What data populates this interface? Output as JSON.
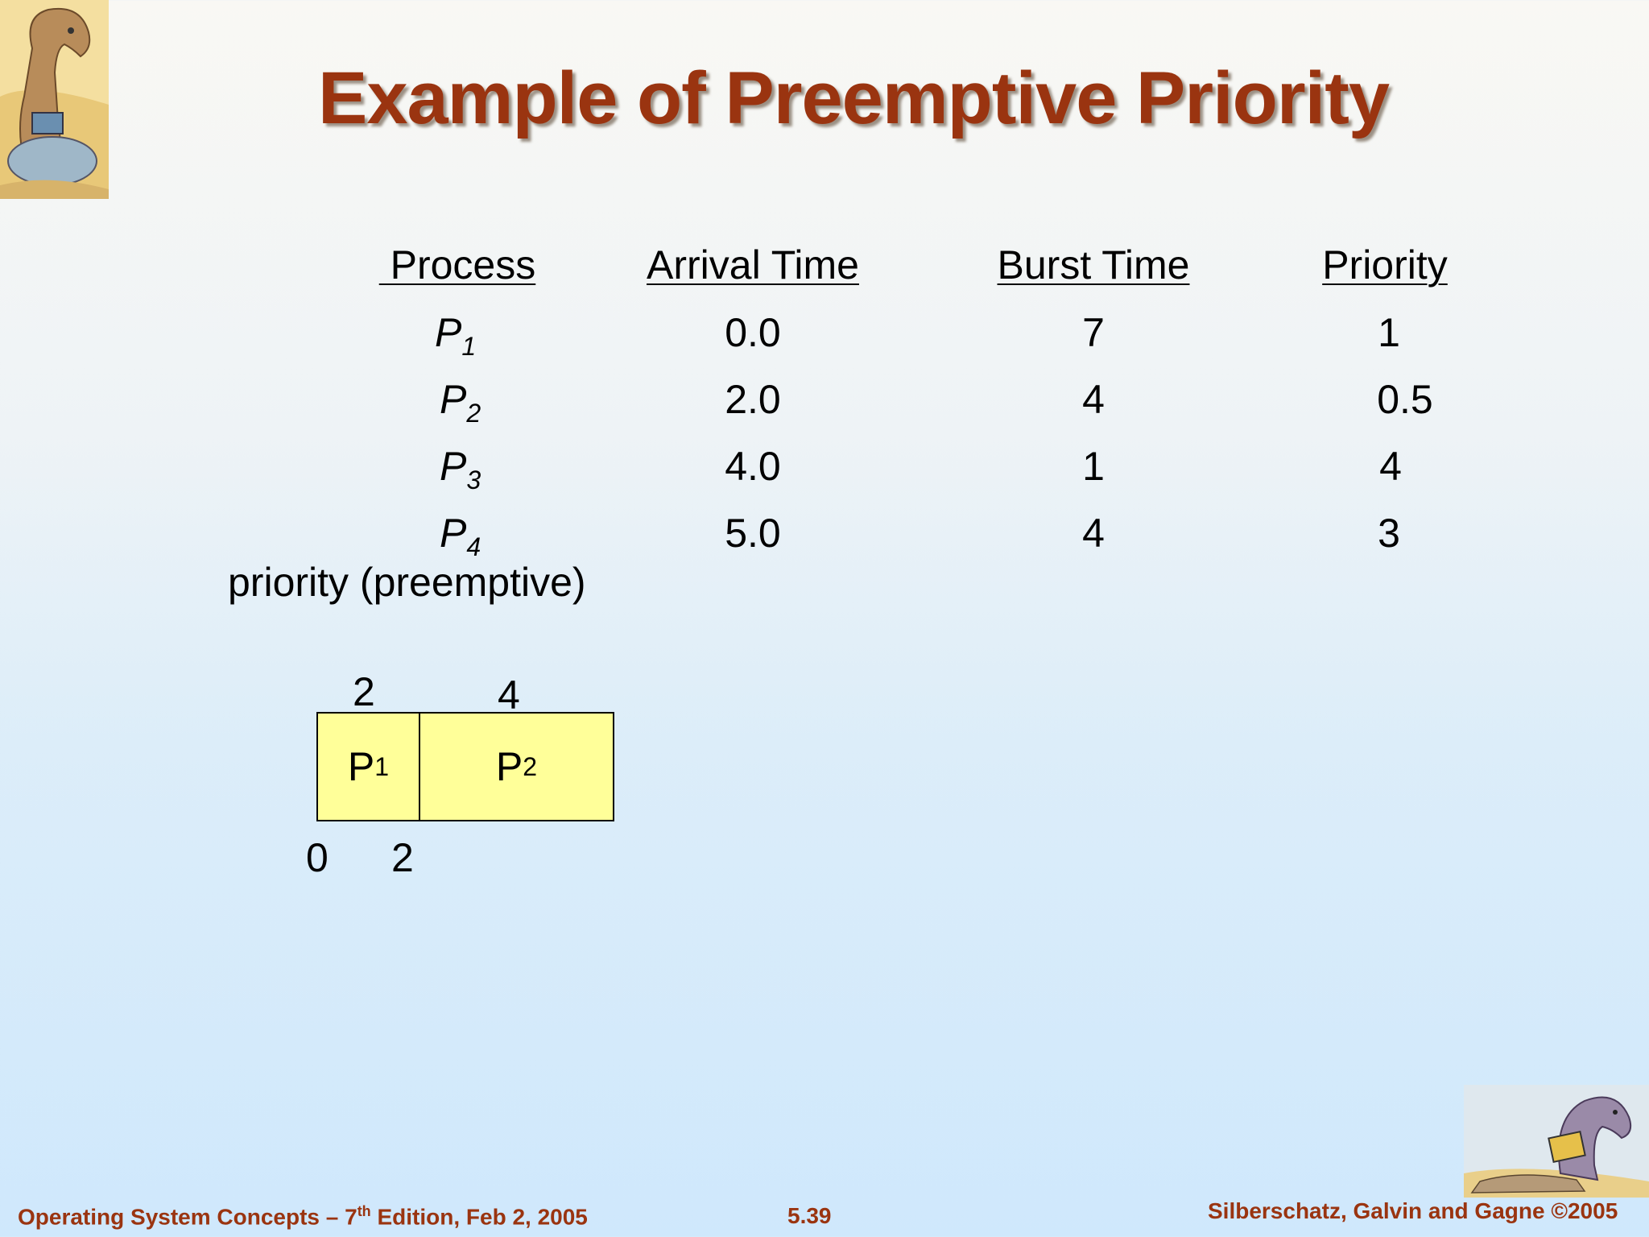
{
  "title": "Example of Preemptive Priority",
  "table": {
    "headers": [
      " Process",
      "Arrival Time",
      "Burst Time",
      "Priority"
    ],
    "rows": [
      {
        "process": "P",
        "sub": "1",
        "arrival": "0.0",
        "burst": "7",
        "priority": "1"
      },
      {
        "process": "P",
        "sub": "2",
        "arrival": "2.0",
        "burst": "4",
        "priority": "0.5"
      },
      {
        "process": "P",
        "sub": "3",
        "arrival": "4.0",
        "burst": "1",
        "priority": "4"
      },
      {
        "process": "P",
        "sub": "4",
        "arrival": "5.0",
        "burst": "4",
        "priority": "3"
      }
    ]
  },
  "subheading": "priority (preemptive)",
  "gantt": {
    "segments": [
      {
        "label": "P",
        "sub": "1",
        "above": "2"
      },
      {
        "label": "P",
        "sub": "2",
        "above": "4"
      }
    ],
    "times": [
      "0",
      "2"
    ]
  },
  "footer": {
    "left_pre": "Operating System Concepts – 7",
    "left_sup": "th",
    "left_post": " Edition, Feb 2, 2005",
    "center": "5.39",
    "right": "Silberschatz, Galvin and Gagne ©2005"
  },
  "images": {
    "top_left": "dinosaur-reading-icon",
    "bottom_right": "dinosaur-laptop-icon"
  }
}
